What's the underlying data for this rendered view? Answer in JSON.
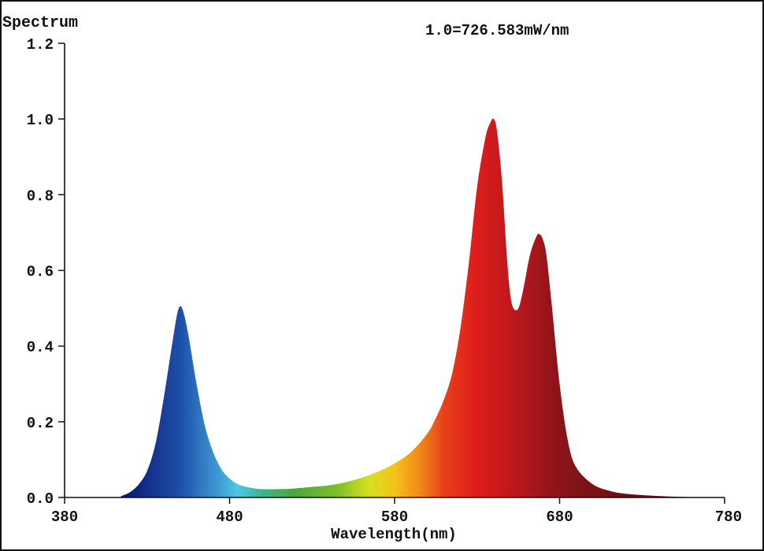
{
  "chart_data": {
    "type": "area",
    "title": "",
    "ylabel": "Spectrum",
    "xlabel": "Wavelength(nm)",
    "annotation": "1.0=726.583mW/nm",
    "xlim": [
      380,
      780
    ],
    "ylim": [
      0,
      1.2
    ],
    "x_ticks": [
      380,
      480,
      580,
      680,
      780
    ],
    "x_tick_labels": [
      "380",
      "480",
      "580",
      "680",
      "780"
    ],
    "y_ticks": [
      0,
      0.2,
      0.4,
      0.6,
      0.8,
      1.0,
      1.2
    ],
    "y_tick_labels": [
      "0.0",
      "0.2",
      "0.4",
      "0.6",
      "0.8",
      "1.0",
      "1.2"
    ],
    "grid": false,
    "series": [
      {
        "x": [
          380,
          410,
          415,
          420,
          425,
          430,
          435,
          440,
          445,
          448,
          450,
          452,
          455,
          460,
          465,
          470,
          475,
          480,
          485,
          490,
          495,
          500,
          510,
          520,
          530,
          540,
          550,
          560,
          570,
          580,
          590,
          600,
          605,
          610,
          615,
          620,
          625,
          630,
          635,
          638,
          640,
          642,
          645,
          648,
          650,
          652,
          655,
          658,
          662,
          666,
          668,
          670,
          672,
          675,
          680,
          685,
          690,
          700,
          710,
          720,
          740,
          760,
          780
        ],
        "y": [
          0.0,
          0.0,
          0.005,
          0.015,
          0.035,
          0.07,
          0.14,
          0.26,
          0.4,
          0.48,
          0.505,
          0.49,
          0.43,
          0.3,
          0.19,
          0.12,
          0.075,
          0.05,
          0.035,
          0.028,
          0.024,
          0.022,
          0.022,
          0.024,
          0.028,
          0.032,
          0.04,
          0.052,
          0.068,
          0.09,
          0.12,
          0.17,
          0.21,
          0.26,
          0.33,
          0.45,
          0.62,
          0.82,
          0.95,
          0.99,
          1.0,
          0.97,
          0.84,
          0.64,
          0.54,
          0.5,
          0.5,
          0.55,
          0.64,
          0.69,
          0.695,
          0.68,
          0.64,
          0.52,
          0.3,
          0.15,
          0.08,
          0.035,
          0.018,
          0.01,
          0.004,
          0.001,
          0.0
        ]
      }
    ],
    "gradient_colors": [
      {
        "nm": 420,
        "color": "#0b1f7a"
      },
      {
        "nm": 450,
        "color": "#1e4fa8"
      },
      {
        "nm": 470,
        "color": "#3a8fd0"
      },
      {
        "nm": 485,
        "color": "#4cc6e6"
      },
      {
        "nm": 500,
        "color": "#3fb48a"
      },
      {
        "nm": 520,
        "color": "#4aa83a"
      },
      {
        "nm": 545,
        "color": "#7cbf2a"
      },
      {
        "nm": 565,
        "color": "#d8e020"
      },
      {
        "nm": 580,
        "color": "#f5c21a"
      },
      {
        "nm": 595,
        "color": "#f08a18"
      },
      {
        "nm": 610,
        "color": "#e8401a"
      },
      {
        "nm": 630,
        "color": "#dd1c1c"
      },
      {
        "nm": 650,
        "color": "#c0181c"
      },
      {
        "nm": 680,
        "color": "#8a1419"
      },
      {
        "nm": 720,
        "color": "#6a1014"
      }
    ]
  }
}
